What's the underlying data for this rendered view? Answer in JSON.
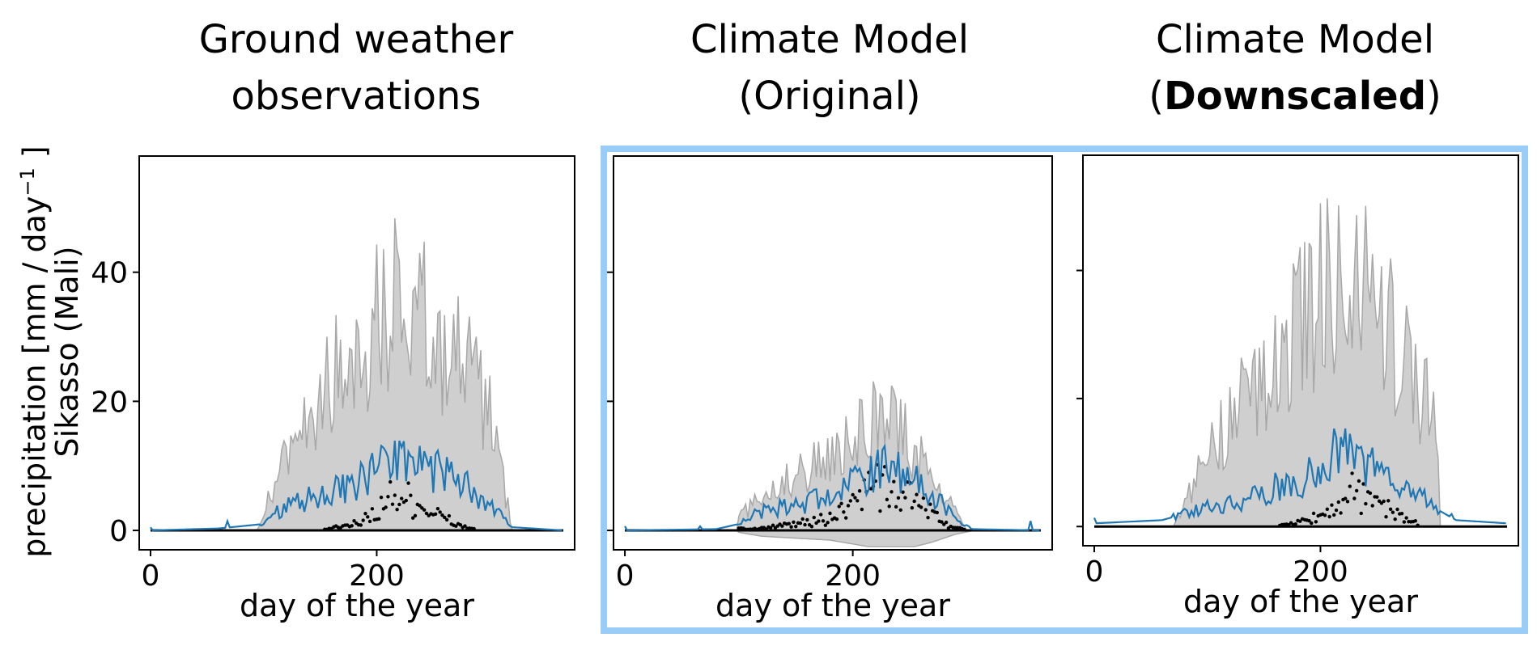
{
  "panels": [
    {
      "title_line1": "Ground weather",
      "title_line2": "observations",
      "title_bold": ""
    },
    {
      "title_line1": "Climate Model",
      "title_line2_pre": "(Original)",
      "title_bold": ""
    },
    {
      "title_line1": "Climate Model",
      "title_line2_pre": "(",
      "title_bold": "Downscaled",
      "title_line2_post": ")"
    }
  ],
  "ylabel_line1": "precipitation [mm / day",
  "ylabel_sup": "−1",
  "ylabel_line1_end": " ]",
  "ylabel_line2": "Sikasso (Mali)",
  "colors": {
    "mean_line": "#1f77b4",
    "band": "#cfcfcf",
    "band_edge": "#a8a8a8",
    "median": "#000000",
    "highlight": "#99cdf8"
  },
  "chart_data": [
    {
      "type": "line",
      "title": "Ground weather observations",
      "xlabel": "day of the year",
      "ylabel": "precipitation [mm / day⁻¹ ] Sikasso (Mali)",
      "xlim": [
        -10,
        375
      ],
      "ylim": [
        -3,
        58
      ],
      "xticks": [
        0,
        200
      ],
      "yticks": [
        0,
        20,
        40
      ],
      "peak_day": 215,
      "season": [
        95,
        320
      ],
      "series": [
        {
          "kind": "mean",
          "x": [
            0,
            60,
            100,
            120,
            140,
            160,
            180,
            200,
            210,
            220,
            240,
            260,
            280,
            300,
            320,
            365
          ],
          "values": [
            0,
            0.3,
            1,
            4,
            5,
            6,
            7,
            9,
            10,
            11,
            10,
            9,
            7,
            4,
            0.5,
            0
          ]
        },
        {
          "kind": "upper",
          "x": [
            0,
            95,
            110,
            140,
            170,
            200,
            215,
            240,
            270,
            300,
            320,
            365
          ],
          "values": [
            0,
            0,
            8,
            20,
            28,
            35,
            40,
            35,
            30,
            20,
            0,
            0
          ]
        },
        {
          "kind": "median",
          "x": [
            0,
            150,
            180,
            200,
            215,
            230,
            250,
            270,
            290,
            365
          ],
          "values": [
            0,
            0,
            1,
            3,
            6,
            5,
            3,
            1,
            0,
            0
          ]
        }
      ]
    },
    {
      "type": "line",
      "title": "Climate Model (Original)",
      "xlabel": "day of the year",
      "xlim": [
        -10,
        375
      ],
      "ylim": [
        -3,
        58
      ],
      "xticks": [
        0,
        200
      ],
      "yticks": [
        0,
        20,
        40
      ],
      "peak_day": 225,
      "season": [
        100,
        305
      ],
      "series": [
        {
          "kind": "mean",
          "x": [
            0,
            80,
            100,
            120,
            150,
            180,
            200,
            220,
            235,
            250,
            270,
            290,
            305,
            365
          ],
          "values": [
            0,
            0.2,
            1,
            3,
            4,
            5,
            7,
            9,
            10,
            9,
            6,
            2,
            0.2,
            0
          ]
        },
        {
          "kind": "upper",
          "x": [
            0,
            90,
            110,
            140,
            170,
            200,
            225,
            240,
            260,
            280,
            300,
            365
          ],
          "values": [
            0,
            0,
            4,
            8,
            11,
            15,
            19,
            17,
            12,
            6,
            0,
            0
          ]
        },
        {
          "kind": "median",
          "x": [
            0,
            120,
            150,
            180,
            200,
            220,
            240,
            260,
            280,
            300,
            365
          ],
          "values": [
            0,
            0.3,
            1,
            2,
            4,
            7,
            6,
            4,
            1,
            0,
            0
          ]
        }
      ]
    },
    {
      "type": "line",
      "title": "Climate Model (Downscaled)",
      "xlabel": "day of the year",
      "xlim": [
        -10,
        375
      ],
      "ylim": [
        -3,
        58
      ],
      "xticks": [
        0,
        200
      ],
      "yticks": [
        0,
        20,
        40
      ],
      "peak_day": 220,
      "season": [
        70,
        305
      ],
      "series": [
        {
          "kind": "mean",
          "x": [
            0,
            60,
            80,
            100,
            130,
            160,
            190,
            210,
            225,
            240,
            260,
            280,
            300,
            320,
            365
          ],
          "values": [
            0.5,
            1,
            2,
            3,
            4,
            6,
            8,
            11,
            12,
            10,
            8,
            6,
            3,
            1,
            0.5
          ]
        },
        {
          "kind": "upper",
          "x": [
            0,
            70,
            90,
            120,
            150,
            180,
            210,
            225,
            245,
            270,
            300,
            310,
            365
          ],
          "values": [
            0,
            0,
            8,
            18,
            26,
            34,
            42,
            45,
            38,
            30,
            18,
            0,
            0
          ]
        },
        {
          "kind": "median",
          "x": [
            0,
            160,
            190,
            210,
            225,
            245,
            270,
            290,
            365
          ],
          "values": [
            0,
            0,
            1,
            3,
            6,
            4,
            2,
            0,
            0
          ]
        }
      ]
    }
  ]
}
